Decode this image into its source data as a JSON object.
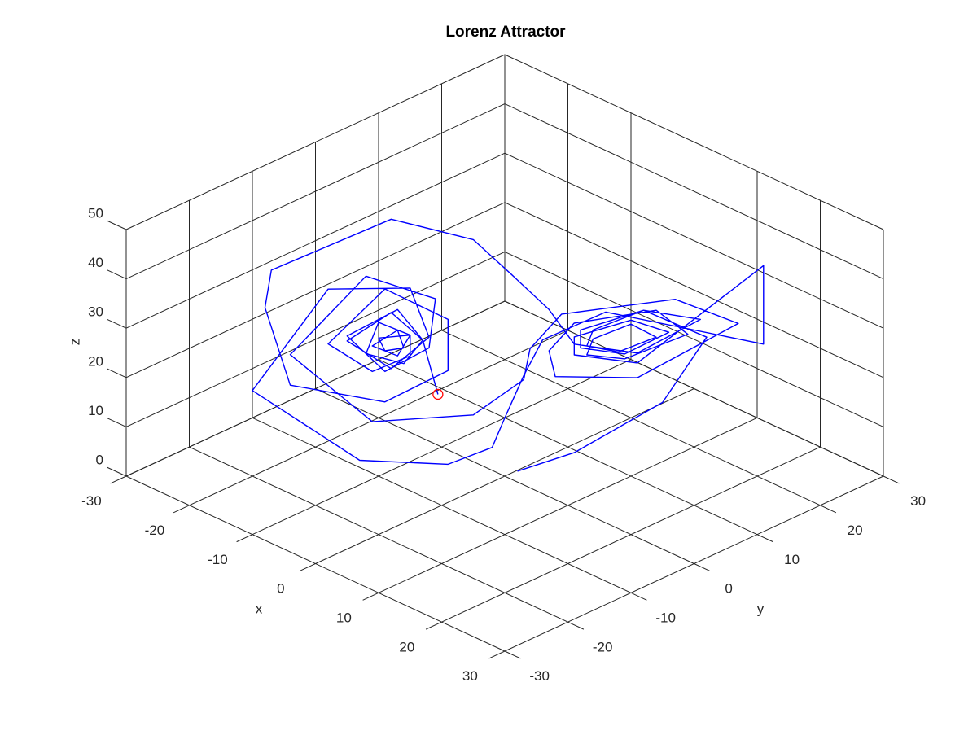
{
  "chart_data": {
    "type": "line3d",
    "title": "Lorenz Attractor",
    "xlabel": "x",
    "ylabel": "y",
    "zlabel": "z",
    "xlim": [
      -30,
      30
    ],
    "ylim": [
      -30,
      30
    ],
    "zlim": [
      0,
      50
    ],
    "xticks": [
      -30,
      -20,
      -10,
      0,
      10,
      20,
      30
    ],
    "yticks": [
      -30,
      -20,
      -10,
      0,
      10,
      20,
      30
    ],
    "zticks": [
      0,
      10,
      20,
      30,
      40,
      50
    ],
    "grid": true,
    "series": [
      {
        "color": "#0000ff",
        "x": [
          1,
          4,
          10,
          15,
          13,
          9,
          7,
          8,
          11,
          11,
          8,
          6,
          8,
          13,
          14,
          8,
          4,
          3,
          8,
          16,
          17,
          8,
          3,
          1,
          -2,
          -8,
          -15,
          -14,
          -8,
          -6,
          -8,
          -12,
          -10,
          -7,
          -7,
          -10,
          -11,
          -8,
          -8,
          -10,
          -9,
          -8,
          -9,
          -10,
          -8,
          -7,
          -9,
          -13,
          -12,
          -6,
          -4,
          -7,
          -14,
          -20,
          -20,
          -15,
          -5,
          -2,
          2,
          4,
          8,
          14,
          13,
          8,
          6,
          8,
          12,
          12,
          7,
          5,
          8,
          14,
          19,
          12,
          5,
          2,
          1,
          0,
          -4,
          -10,
          -22,
          -19,
          -11,
          -7,
          -8,
          -12,
          -10,
          -7,
          -5.8
        ],
        "y": [
          1,
          7,
          15,
          17,
          9,
          5,
          6,
          10,
          13,
          9,
          6,
          7,
          11,
          16,
          10,
          3,
          3,
          5,
          13,
          21,
          10,
          1,
          1,
          2,
          -3,
          -13,
          -19,
          -8,
          -3,
          -6,
          -11,
          -13,
          -7,
          -6,
          -9,
          -12,
          -9,
          -7,
          -9,
          -11,
          -8,
          -8,
          -10,
          -10,
          -7,
          -8,
          -12,
          -15,
          -7,
          -3,
          -5,
          -12,
          -20,
          -18,
          -17,
          -3,
          0,
          3,
          5,
          7,
          13,
          17,
          9,
          4,
          6,
          11,
          14,
          8,
          4,
          6,
          13,
          27,
          22,
          4,
          1,
          1,
          -1,
          -2,
          -5,
          -13,
          -18,
          -9,
          -4,
          -5,
          -10,
          -13,
          -8,
          -6,
          -4.8
        ],
        "z": [
          1,
          3,
          12,
          27,
          36,
          32,
          27,
          24,
          27,
          32,
          29,
          24,
          22,
          27,
          36,
          34,
          26,
          19,
          17,
          28,
          40,
          37,
          27,
          19,
          13,
          14,
          27,
          37,
          33,
          26,
          23,
          29,
          32,
          27,
          24,
          26,
          30,
          28,
          25,
          27,
          29,
          26,
          26,
          28,
          28,
          25,
          23,
          28,
          35,
          30,
          22,
          18,
          22,
          33,
          40,
          45,
          45,
          38,
          32,
          25,
          22,
          30,
          36,
          32,
          26,
          23,
          28,
          34,
          30,
          24,
          20,
          35,
          25,
          38,
          30,
          21,
          13,
          7,
          3,
          5,
          15,
          32,
          34,
          27,
          23,
          28,
          32,
          27,
          16
        ]
      },
      {
        "color": "#ff0000",
        "marker": "o",
        "x": [
          -5.8
        ],
        "y": [
          -4.8
        ],
        "z": [
          16
        ]
      }
    ]
  }
}
